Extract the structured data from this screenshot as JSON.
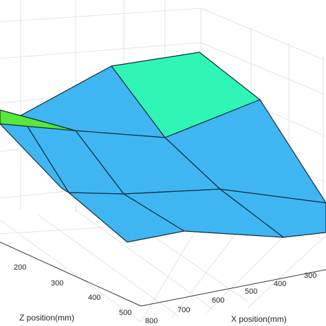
{
  "chart_data": {
    "type": "surface",
    "xlabel": "X position(mm)",
    "zlabel": "Z position(mm)",
    "x_ticks": [
      "800",
      "700",
      "600",
      "500",
      "400",
      "300"
    ],
    "z_ticks": [
      "200",
      "300",
      "400",
      "500"
    ],
    "grid": true,
    "surface_colors": {
      "main": "#3fb6f2",
      "highlight": "#2ff5b7",
      "edge_patch": "#56e83a",
      "mesh": "#0e2a3a"
    }
  }
}
